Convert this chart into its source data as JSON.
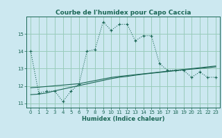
{
  "title": "Courbe de l'humidex pour Capo Caccia",
  "xlabel": "Humidex (Indice chaleur)",
  "background_color": "#cce8f0",
  "grid_color": "#99ccbb",
  "line_color": "#1a6655",
  "xlim": [
    -0.5,
    23.5
  ],
  "ylim": [
    10.75,
    16.0
  ],
  "yticks": [
    11,
    12,
    13,
    14,
    15
  ],
  "xticks": [
    0,
    1,
    2,
    3,
    4,
    5,
    6,
    7,
    8,
    9,
    10,
    11,
    12,
    13,
    14,
    15,
    16,
    17,
    18,
    19,
    20,
    21,
    22,
    23
  ],
  "line1_x": [
    0,
    1,
    2,
    3,
    4,
    5,
    6,
    7,
    8,
    9,
    10,
    11,
    12,
    13,
    14,
    15,
    16,
    17,
    18,
    19,
    20,
    21,
    22,
    23
  ],
  "line1_y": [
    14.0,
    11.6,
    11.7,
    11.7,
    11.1,
    11.7,
    12.1,
    14.0,
    14.1,
    15.7,
    15.2,
    15.55,
    15.55,
    14.6,
    14.9,
    14.9,
    13.3,
    12.9,
    12.9,
    12.9,
    12.5,
    12.8,
    12.5,
    12.5
  ],
  "line2_x": [
    0,
    1,
    2,
    3,
    4,
    5,
    6,
    7,
    8,
    9,
    10,
    11,
    12,
    13,
    14,
    15,
    16,
    17,
    18,
    19,
    20,
    21,
    22,
    23
  ],
  "line2_y": [
    11.5,
    11.53,
    11.6,
    11.72,
    11.82,
    11.92,
    12.02,
    12.12,
    12.22,
    12.32,
    12.42,
    12.5,
    12.55,
    12.62,
    12.68,
    12.73,
    12.78,
    12.83,
    12.88,
    12.93,
    12.97,
    13.01,
    13.05,
    13.1
  ],
  "line3_x": [
    0,
    1,
    2,
    3,
    4,
    5,
    6,
    7,
    8,
    9,
    10,
    11,
    12,
    13,
    14,
    15,
    16,
    17,
    18,
    19,
    20,
    21,
    22,
    23
  ],
  "line3_y": [
    11.9,
    11.93,
    11.97,
    12.01,
    12.05,
    12.09,
    12.13,
    12.22,
    12.31,
    12.4,
    12.49,
    12.55,
    12.6,
    12.65,
    12.7,
    12.75,
    12.8,
    12.85,
    12.9,
    12.95,
    13.0,
    13.05,
    13.1,
    13.15
  ]
}
